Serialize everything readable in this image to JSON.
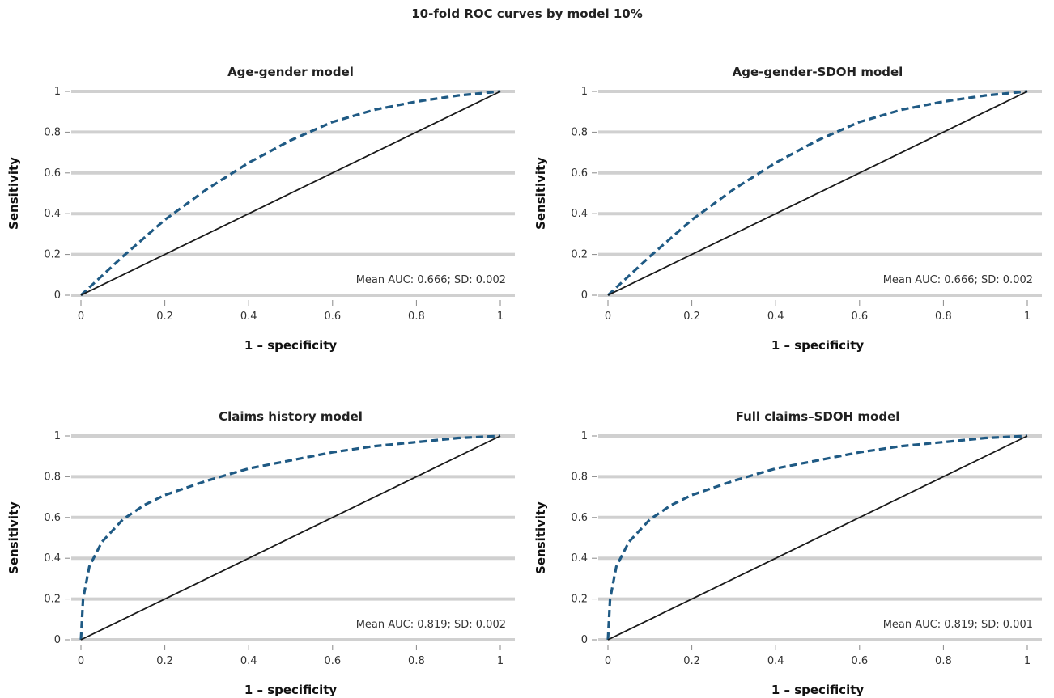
{
  "title": "10-fold ROC curves by model 10%",
  "colors": {
    "curve": "#1f5a84",
    "diagonal": "#1a1a1a",
    "grid": "#d0d0d0"
  },
  "chart_data": [
    {
      "type": "line",
      "title": "Age-gender model",
      "xlabel": "1 – specificity",
      "ylabel": "Sensitivity",
      "xlim": [
        0,
        1
      ],
      "ylim": [
        0,
        1
      ],
      "xticks": [
        "0",
        "0.2",
        "0.4",
        "0.6",
        "0.8",
        "1"
      ],
      "yticks": [
        "0",
        "0.2",
        "0.4",
        "0.6",
        "0.8",
        "1"
      ],
      "grid": "horizontal",
      "annotation": "Mean AUC: 0.666; SD: 0.002",
      "series": [
        {
          "style": "dashed",
          "x": [
            0,
            0.1,
            0.2,
            0.3,
            0.4,
            0.5,
            0.6,
            0.7,
            0.8,
            0.9,
            1
          ],
          "y": [
            0,
            0.19,
            0.37,
            0.52,
            0.65,
            0.76,
            0.85,
            0.91,
            0.95,
            0.98,
            1
          ]
        },
        {
          "style": "solid",
          "x": [
            0,
            1
          ],
          "y": [
            0,
            1
          ]
        }
      ]
    },
    {
      "type": "line",
      "title": "Age-gender-SDOH model",
      "xlabel": "1 – specificity",
      "ylabel": "Sensitivity",
      "xlim": [
        0,
        1
      ],
      "ylim": [
        0,
        1
      ],
      "xticks": [
        "0",
        "0.2",
        "0.4",
        "0.6",
        "0.8",
        "1"
      ],
      "yticks": [
        "0",
        "0.2",
        "0.4",
        "0.6",
        "0.8",
        "1"
      ],
      "grid": "horizontal",
      "annotation": "Mean AUC: 0.666; SD: 0.002",
      "series": [
        {
          "style": "dashed",
          "x": [
            0,
            0.1,
            0.2,
            0.3,
            0.4,
            0.5,
            0.6,
            0.7,
            0.8,
            0.9,
            1
          ],
          "y": [
            0,
            0.19,
            0.37,
            0.52,
            0.65,
            0.76,
            0.85,
            0.91,
            0.95,
            0.98,
            1
          ]
        },
        {
          "style": "solid",
          "x": [
            0,
            1
          ],
          "y": [
            0,
            1
          ]
        }
      ]
    },
    {
      "type": "line",
      "title": "Claims history model",
      "xlabel": "1 – specificity",
      "ylabel": "Sensitivity",
      "xlim": [
        0,
        1
      ],
      "ylim": [
        0,
        1
      ],
      "xticks": [
        "0",
        "0.2",
        "0.4",
        "0.6",
        "0.8",
        "1"
      ],
      "yticks": [
        "0",
        "0.2",
        "0.4",
        "0.6",
        "0.8",
        "1"
      ],
      "grid": "horizontal",
      "annotation": "Mean AUC: 0.819; SD: 0.002",
      "series": [
        {
          "style": "dashed",
          "x": [
            0,
            0.005,
            0.02,
            0.05,
            0.1,
            0.15,
            0.2,
            0.3,
            0.4,
            0.5,
            0.6,
            0.7,
            0.8,
            0.9,
            1
          ],
          "y": [
            0,
            0.2,
            0.36,
            0.48,
            0.59,
            0.66,
            0.71,
            0.78,
            0.84,
            0.88,
            0.92,
            0.95,
            0.97,
            0.99,
            1
          ]
        },
        {
          "style": "solid",
          "x": [
            0,
            1
          ],
          "y": [
            0,
            1
          ]
        }
      ]
    },
    {
      "type": "line",
      "title": "Full claims–SDOH model",
      "xlabel": "1 – specificity",
      "ylabel": "Sensitivity",
      "xlim": [
        0,
        1
      ],
      "ylim": [
        0,
        1
      ],
      "xticks": [
        "0",
        "0.2",
        "0.4",
        "0.6",
        "0.8",
        "1"
      ],
      "yticks": [
        "0",
        "0.2",
        "0.4",
        "0.6",
        "0.8",
        "1"
      ],
      "grid": "horizontal",
      "annotation": "Mean AUC: 0.819; SD: 0.001",
      "series": [
        {
          "style": "dashed",
          "x": [
            0,
            0.005,
            0.02,
            0.05,
            0.1,
            0.15,
            0.2,
            0.3,
            0.4,
            0.5,
            0.6,
            0.7,
            0.8,
            0.9,
            1
          ],
          "y": [
            0,
            0.2,
            0.36,
            0.48,
            0.59,
            0.66,
            0.71,
            0.78,
            0.84,
            0.88,
            0.92,
            0.95,
            0.97,
            0.99,
            1
          ]
        },
        {
          "style": "solid",
          "x": [
            0,
            1
          ],
          "y": [
            0,
            1
          ]
        }
      ]
    }
  ]
}
